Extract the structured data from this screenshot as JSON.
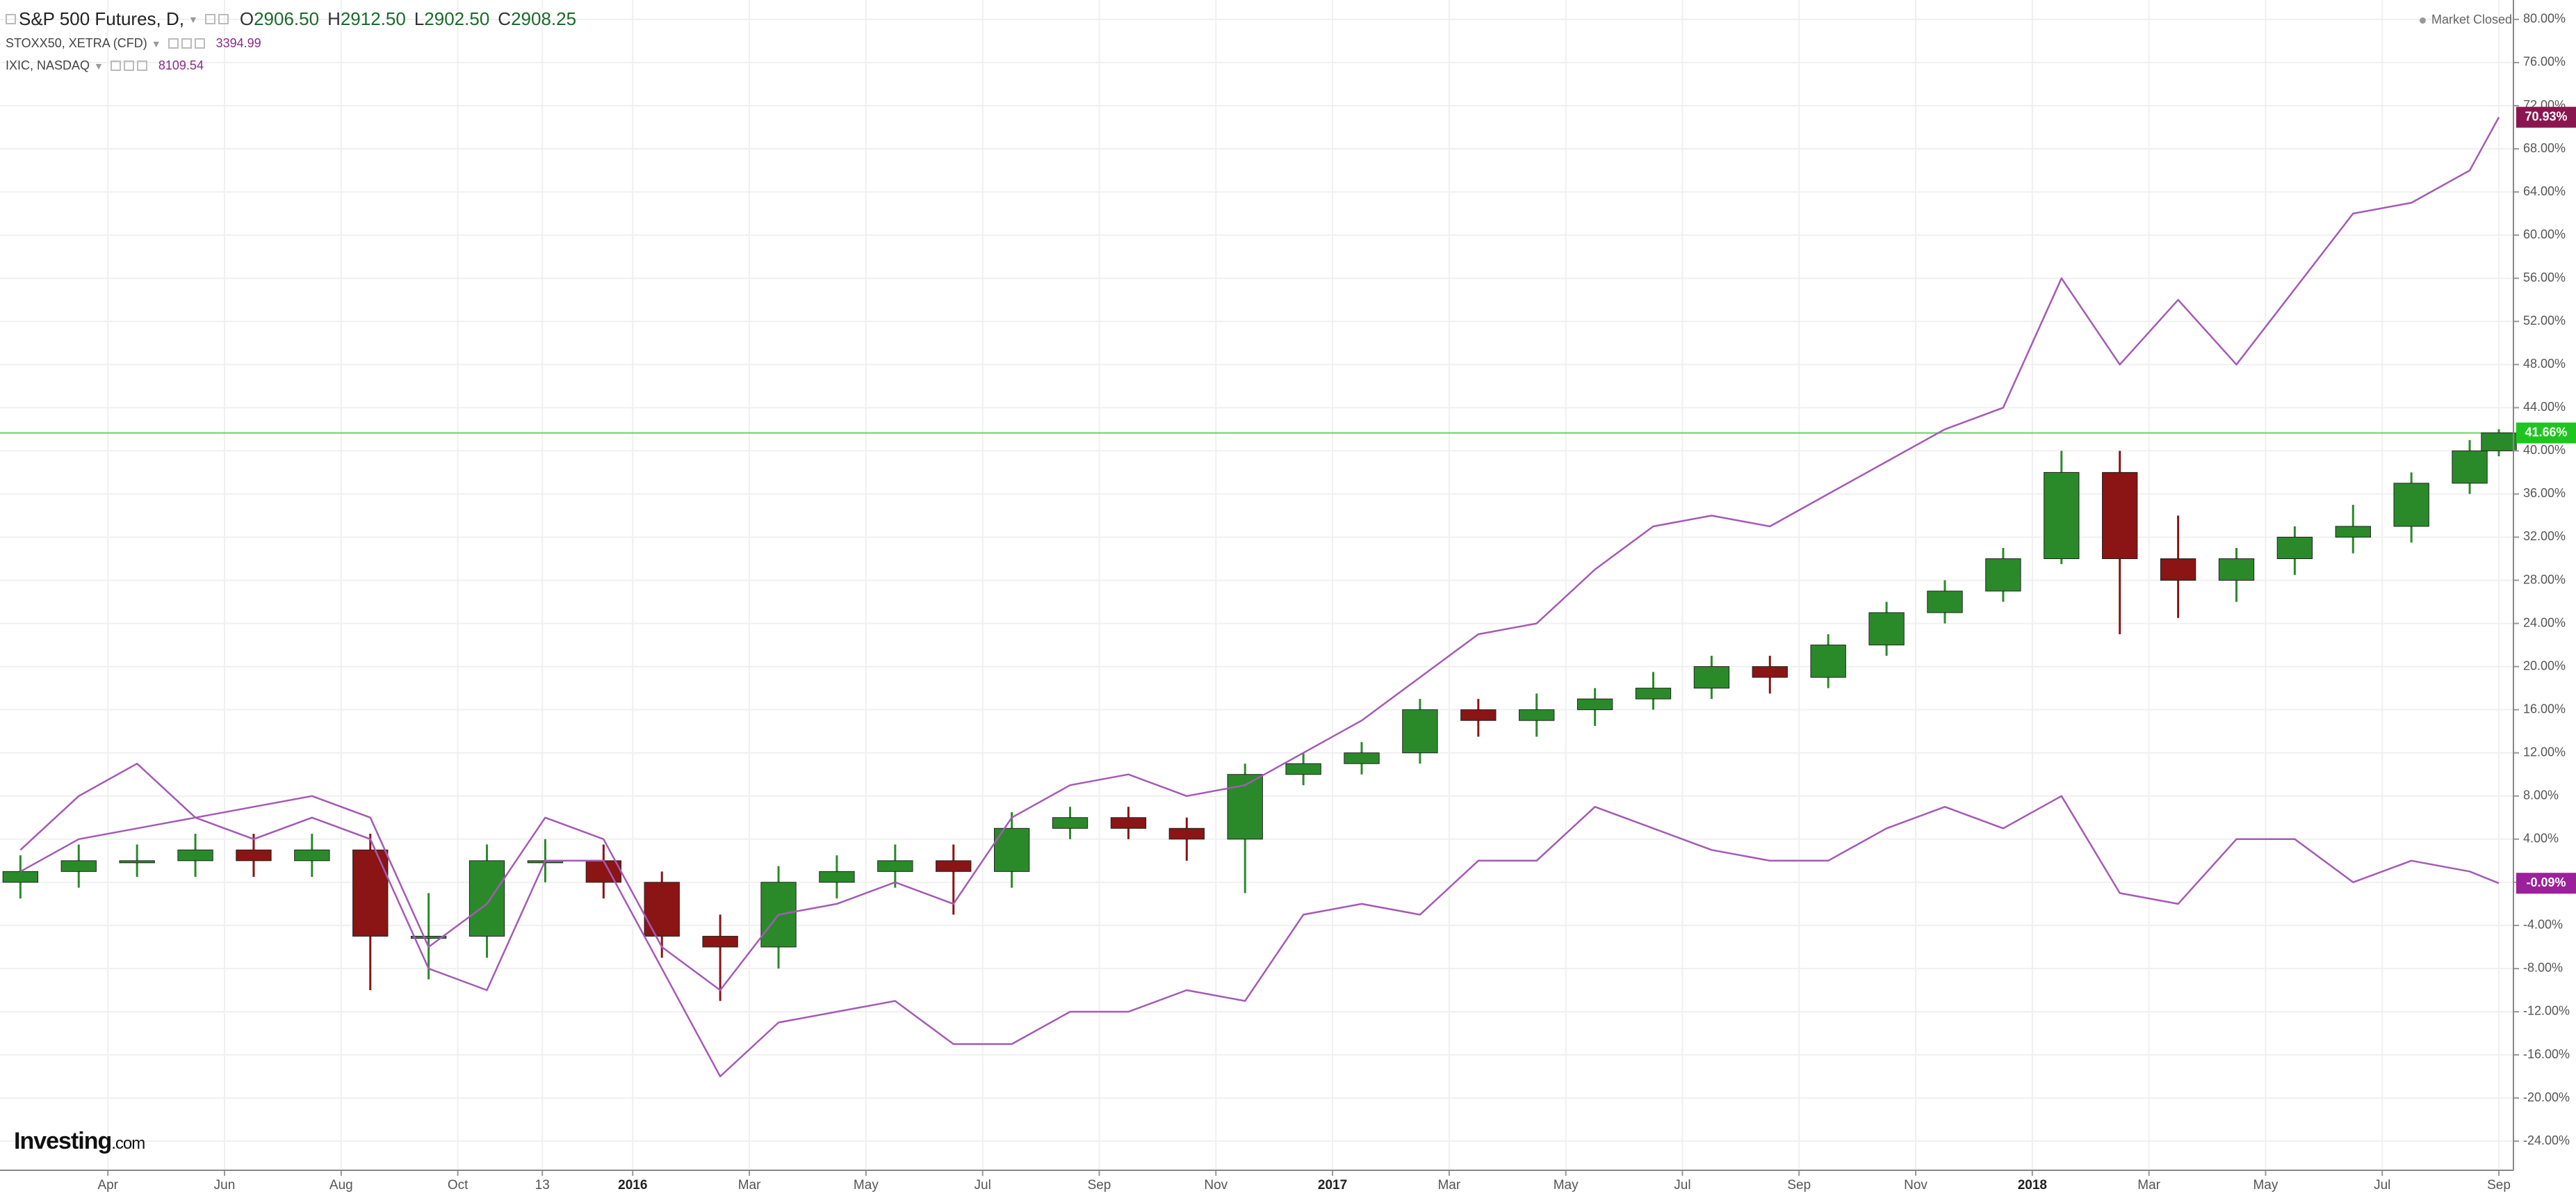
{
  "header": {
    "title": "S&P 500 Futures, D,",
    "ohlc": [
      {
        "label": "O",
        "value": "2906.50"
      },
      {
        "label": "H",
        "value": "2912.50"
      },
      {
        "label": "L",
        "value": "2902.50"
      },
      {
        "label": "C",
        "value": "2908.25"
      }
    ],
    "legends": [
      {
        "name": "STOXX50, XETRA (CFD)",
        "value": "3394.99"
      },
      {
        "name": "IXIC, NASDAQ",
        "value": "8109.54"
      }
    ],
    "status": "Market Closed",
    "brand": {
      "name": "Investing",
      "suffix": ".com"
    }
  },
  "chart_data": {
    "type": "candlestick",
    "x": [
      1.5,
      2.5,
      3.5,
      4.5,
      5.5,
      6.5,
      7.5,
      8.5,
      9.5,
      10.5,
      11.5,
      12.5,
      13.5,
      14.5,
      15.5,
      16.5,
      17.5,
      18.5,
      19.5,
      20.5,
      21.5,
      22.5,
      23.5,
      24.5,
      25.5,
      26.5,
      27.5,
      28.5,
      29.5,
      30.5,
      31.5,
      32.5,
      33.5,
      34.5,
      35.5,
      36.5,
      37.5,
      38.5,
      39.5,
      40.5,
      41.5,
      42.5,
      43.5,
      44
    ],
    "xlim": [
      1.15,
      44.25
    ],
    "xticks": [
      {
        "value": 3,
        "label": "Apr"
      },
      {
        "value": 5,
        "label": "Jun"
      },
      {
        "value": 7,
        "label": "Aug"
      },
      {
        "value": 9,
        "label": "Oct"
      },
      {
        "value": 10.45,
        "label": "13"
      },
      {
        "value": 12,
        "label": "2016"
      },
      {
        "value": 14,
        "label": "Mar"
      },
      {
        "value": 16,
        "label": "May"
      },
      {
        "value": 18,
        "label": "Jul"
      },
      {
        "value": 20,
        "label": "Sep"
      },
      {
        "value": 22,
        "label": "Nov"
      },
      {
        "value": 24,
        "label": "2017"
      },
      {
        "value": 26,
        "label": "Mar"
      },
      {
        "value": 28,
        "label": "May"
      },
      {
        "value": 30,
        "label": "Jul"
      },
      {
        "value": 32,
        "label": "Sep"
      },
      {
        "value": 34,
        "label": "Nov"
      },
      {
        "value": 36,
        "label": "2018"
      },
      {
        "value": 38,
        "label": "Mar"
      },
      {
        "value": 40,
        "label": "May"
      },
      {
        "value": 42,
        "label": "Jul"
      },
      {
        "value": 44,
        "label": "Sep"
      }
    ],
    "ylim": [
      -26.7,
      81.8
    ],
    "yticks": [
      {
        "value": 80,
        "label": "80.00%"
      },
      {
        "value": 76,
        "label": "76.00%"
      },
      {
        "value": 72,
        "label": "72.00%"
      },
      {
        "value": 68,
        "label": "68.00%"
      },
      {
        "value": 64,
        "label": "64.00%"
      },
      {
        "value": 60,
        "label": "60.00%"
      },
      {
        "value": 56,
        "label": "56.00%"
      },
      {
        "value": 52,
        "label": "52.00%"
      },
      {
        "value": 48,
        "label": "48.00%"
      },
      {
        "value": 44,
        "label": "44.00%"
      },
      {
        "value": 40,
        "label": "40.00%"
      },
      {
        "value": 36,
        "label": "36.00%"
      },
      {
        "value": 32,
        "label": "32.00%"
      },
      {
        "value": 28,
        "label": "28.00%"
      },
      {
        "value": 24,
        "label": "24.00%"
      },
      {
        "value": 20,
        "label": "20.00%"
      },
      {
        "value": 16,
        "label": "16.00%"
      },
      {
        "value": 12,
        "label": "12.00%"
      },
      {
        "value": 8,
        "label": "8.00%"
      },
      {
        "value": 4,
        "label": "4.00%"
      },
      {
        "value": 0,
        "label": "0.00%"
      },
      {
        "value": -4,
        "label": "-4.00%"
      },
      {
        "value": -8,
        "label": "-8.00%"
      },
      {
        "value": -12,
        "label": "-12.00%"
      },
      {
        "value": -16,
        "label": "-16.00%"
      },
      {
        "value": -20,
        "label": "-20.00%"
      },
      {
        "value": -24,
        "label": "-24.00%"
      }
    ],
    "grid": true,
    "series": [
      {
        "type": "candlestick",
        "up_color": "#2a8a2a",
        "down_color": "#8b1414",
        "open": [
          0,
          1,
          2,
          2,
          3,
          2,
          3,
          -5,
          -5,
          2,
          2,
          0,
          -5,
          -6,
          0,
          1,
          2,
          1,
          5,
          6,
          5,
          4,
          10,
          11,
          12,
          16,
          15,
          16,
          17,
          18,
          20,
          19,
          22,
          25,
          27,
          30,
          38,
          30,
          28,
          30,
          32,
          33,
          37,
          40
        ],
        "high": [
          2.5,
          3.5,
          3.5,
          4.5,
          4.5,
          4.5,
          4.5,
          -1,
          3.5,
          4,
          3.5,
          1,
          -3,
          1.5,
          2.5,
          3.5,
          3.5,
          6.5,
          7,
          7,
          6,
          11,
          12,
          13,
          17,
          17,
          17.5,
          18,
          19.5,
          21,
          21,
          23,
          26,
          28,
          31,
          40,
          40,
          34,
          31,
          33,
          35,
          38,
          41,
          42
        ],
        "low": [
          -1.5,
          -0.5,
          0.5,
          0.5,
          0.5,
          0.5,
          -10,
          -9,
          -7,
          0,
          -1.5,
          -7,
          -11,
          -8,
          -1.5,
          -0.5,
          -3,
          -0.5,
          4,
          4,
          2,
          -1,
          9,
          10,
          11,
          13.5,
          13.5,
          14.5,
          16,
          17,
          17.5,
          18,
          21,
          24,
          26,
          29.5,
          23,
          24.5,
          26,
          28.5,
          30.5,
          31.5,
          36,
          39.5
        ],
        "close": [
          1,
          2,
          2,
          3,
          2,
          3,
          -5,
          -5,
          2,
          2,
          0,
          -5,
          -6,
          0,
          1,
          2,
          1,
          5,
          6,
          5,
          4,
          10,
          11,
          12,
          16,
          15,
          16,
          17,
          18,
          20,
          19,
          22,
          25,
          27,
          30,
          38,
          30,
          28,
          30,
          32,
          33,
          37,
          40,
          41.66
        ],
        "badge": {
          "value": 41.66,
          "label": "41.66%",
          "color": "#1ec51e"
        }
      },
      {
        "type": "line",
        "color": "#a45ab6",
        "values": [
          3,
          8,
          11,
          6,
          4,
          6,
          4,
          -8,
          -10,
          2,
          2,
          -8,
          -18,
          -13,
          -12,
          -11,
          -15,
          -15,
          -12,
          -12,
          -10,
          -11,
          -3,
          -2,
          -3,
          2,
          2,
          7,
          5,
          3,
          2,
          2,
          5,
          7,
          5,
          8,
          -1,
          -2,
          4,
          4,
          0,
          2,
          1,
          -0.09
        ],
        "badge": {
          "value": -0.09,
          "label": "-0.09%",
          "color": "#9c1f9c"
        }
      },
      {
        "type": "line",
        "color": "#a45ab6",
        "values": [
          1,
          4,
          5,
          6,
          7,
          8,
          6,
          -6,
          -2,
          6,
          4,
          -6,
          -10,
          -3,
          -2,
          0,
          -2,
          6,
          9,
          10,
          8,
          9,
          12,
          15,
          19,
          23,
          24,
          29,
          33,
          34,
          33,
          36,
          39,
          42,
          44,
          56,
          48,
          54,
          48,
          55,
          62,
          63,
          66,
          70.93
        ],
        "badge": {
          "value": 70.93,
          "label": "70.93%",
          "color": "#8a1650"
        }
      }
    ]
  }
}
